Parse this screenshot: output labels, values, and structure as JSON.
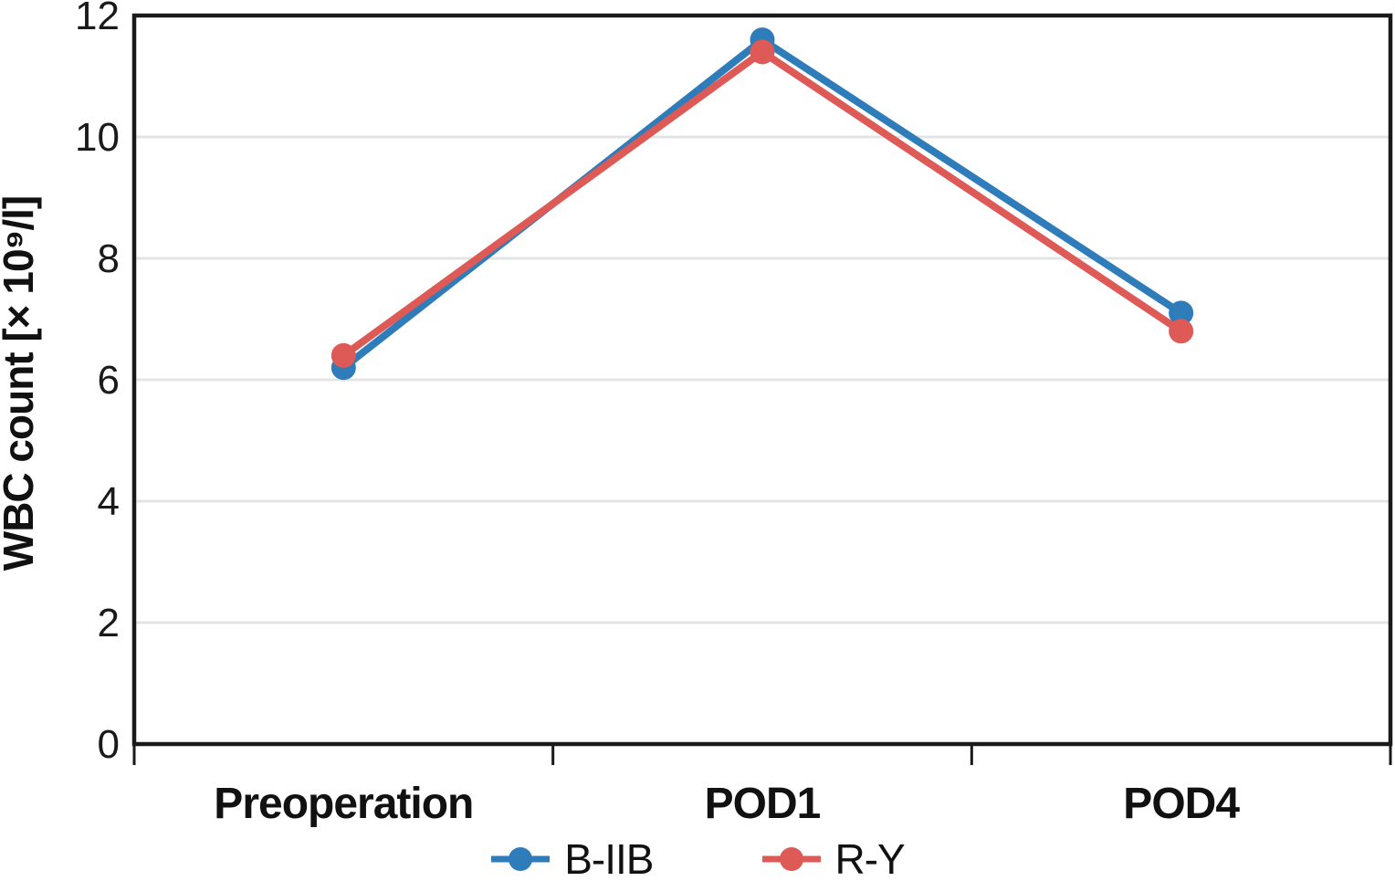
{
  "figure": {
    "background": "#FFFFFF",
    "axis_color": "#1A1A1A",
    "grid_color": "#E3E4E6",
    "text_color": "#111111"
  },
  "chart_data": {
    "type": "line",
    "title": "",
    "categories": [
      "Preoperation",
      "POD1",
      "POD4"
    ],
    "series": [
      {
        "name": "B-IIB",
        "color": "#2E7DBA",
        "values": [
          6.2,
          11.6,
          7.1
        ]
      },
      {
        "name": "R-Y",
        "color": "#DD5A56",
        "values": [
          6.4,
          11.4,
          6.8
        ]
      }
    ],
    "xlabel": "",
    "ylabel": "WBC count [× 10⁹/l]",
    "ylim": [
      0,
      12
    ],
    "yticks": [
      0,
      2,
      4,
      6,
      8,
      10,
      12
    ],
    "grid": true,
    "gridlines": "horizontal",
    "marker": "circle",
    "legend_position": "bottom"
  }
}
